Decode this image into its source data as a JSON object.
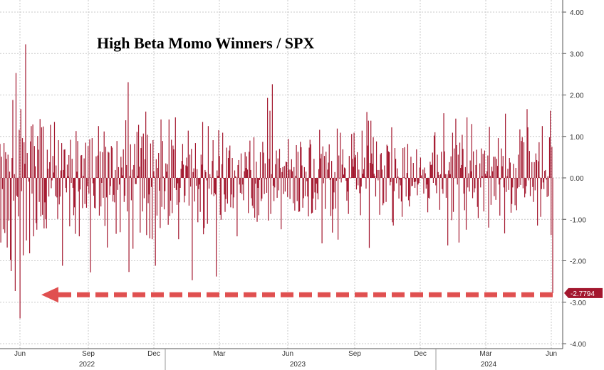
{
  "chart_data": {
    "type": "bar",
    "title": "High Beta Momo Winners / SPX",
    "xlabel": "",
    "ylabel": "",
    "ylim": [
      -4,
      4
    ],
    "y_ticks": [
      "4.00",
      "3.00",
      "2.00",
      "1.00",
      "0.00",
      "-1.00",
      "-2.00",
      "-3.00",
      "-4.00"
    ],
    "y_tick_values": [
      4,
      3,
      2,
      1,
      0,
      -1,
      -2,
      -3,
      -4
    ],
    "x_tick_labels": [
      "Jun",
      "Sep",
      "Dec",
      "Mar",
      "Jun",
      "Sep",
      "Dec",
      "Mar",
      "Jun"
    ],
    "year_labels": [
      "2022",
      "2023",
      "2024"
    ],
    "last_value": -2.7794,
    "last_value_label": "-2.7794",
    "bar_color": "#a3172e",
    "arrow_color": "#e05050",
    "grid": true,
    "axis_side": "right",
    "series": [
      {
        "values": [
          0.82,
          -1.56,
          0.51,
          -0.27,
          -1.24,
          0.84,
          -1.33,
          0.62,
          0.46,
          -1.68,
          0.56,
          -1.03,
          0.15,
          -1.98,
          -2.25,
          0.48,
          1.88,
          -0.55,
          0.09,
          -2.73,
          2.53,
          -0.43,
          -0.46,
          -0.93,
          1.16,
          -3.39,
          1.66,
          -0.32,
          0.96,
          -1.87,
          0.86,
          0.34,
          3.22,
          -1.51,
          0.6,
          0.01,
          -0.09,
          -1.82,
          0.88,
          1.25,
          -0.38,
          1.29,
          -1.41,
          0.77,
          0.28,
          -1.09,
          -1.25,
          1.01,
          0.68,
          -0.58,
          1.42,
          -0.93,
          1.22,
          -0.89,
          1.24,
          -1.22,
          -0.59,
          -1.0,
          -1.22,
          0.68,
          0.22,
          -0.45,
          0.38,
          1.28,
          -0.25,
          -0.06,
          0.53,
          0.13,
          1.35,
          -0.44,
          0.3,
          -0.47,
          -0.99,
          0.91,
          -0.64,
          -0.45,
          0.18,
          0.84,
          -2.12,
          0.19,
          0.68,
          0.69,
          -0.24,
          -0.35,
          0.32,
          0.04,
          0.55,
          -1.17,
          0.92,
          -0.12,
          0.46,
          -0.24,
          -0.9,
          -0.71,
          -1.35,
          1.13,
          0.15,
          0.89,
          -0.33,
          -1.41,
          -0.28,
          0.54,
          0.55,
          -0.73,
          0.05,
          0.47,
          -0.63,
          0.85,
          -0.72,
          -0.2,
          0.77,
          -0.38,
          0.93,
          -2.28,
          0.0,
          0.96,
          -0.13,
          -0.43,
          -0.72,
          -0.74,
          0.52,
          0.01,
          0.54,
          1.25,
          -0.91,
          0.64,
          -0.69,
          -0.12,
          0.62,
          -0.48,
          1.12,
          -1.16,
          0.75,
          -0.47,
          -1.68,
          0.63,
          0.61,
          -0.41,
          -0.2,
          0.77,
          0.73,
          -0.57,
          -0.41,
          -0.59,
          0.19,
          -1.35,
          0.89,
          -0.29,
          0.26,
          -0.16,
          -1.31,
          0.51,
          0.25,
          0.06,
          0.69,
          -0.58,
          -0.43,
          1.39,
          0.31,
          -0.81,
          2.31,
          -2.27,
          0.05,
          0.81,
          -0.54,
          0.2,
          -1.71,
          0.31,
          0.82,
          -0.15,
          -0.15,
          1.11,
          0.05,
          1.28,
          0.27,
          -1.32,
          0.72,
          1.0,
          -0.81,
          1.07,
          -0.49,
          0.45,
          1.6,
          -1.38,
          1.04,
          -0.61,
          -0.4,
          -1.46,
          0.83,
          -0.22,
          -1.48,
          0.91,
          0.16,
          0.03,
          -2.12,
          0.45,
          -0.91,
          0.24,
          0.6,
          -0.31,
          -1.21,
          1.41,
          -0.7,
          0.89,
          0.03,
          -0.76,
          -0.32,
          0.35,
          0.15,
          0.33,
          -1.13,
          1.41,
          -0.92,
          -0.55,
          0.92,
          -0.85,
          0.78,
          0.69,
          -0.24,
          1.46,
          -0.29,
          -0.65,
          -0.13,
          -1.48,
          -0.59,
          -0.24,
          0.22,
          0.41,
          0.82,
          0.32,
          -0.59,
          -0.43,
          0.3,
          0.49,
          0.28,
          1.14,
          -0.67,
          0.56,
          -0.21,
          0.7,
          -2.47,
          0.14,
          0.23,
          -0.57,
          0.84,
          -0.19,
          0.21,
          -1.07,
          -0.27,
          -0.16,
          -0.82,
          0.56,
          0.32,
          1.35,
          -1.36,
          -1.21,
          0.19,
          0.14,
          -0.06,
          -1.11,
          1.25,
          -0.26,
          0.09,
          0.01,
          -0.4,
          0.41,
          0.91,
          -0.44,
          -0.36,
          -0.4,
          -2.38,
          0.18,
          0.05,
          1.15,
          0.53,
          -0.89,
          -1.01,
          0.33,
          1.09,
          -0.02,
          -0.4,
          -0.82,
          -0.51,
          0.73,
          -0.62,
          0.48,
          0.66,
          0.78,
          -0.71,
          -0.4,
          0.48,
          -0.73,
          -0.47,
          0.18,
          0.04,
          0.01,
          -1.41,
          0.31,
          0.43,
          -0.16,
          -0.36,
          0.59,
          -0.39,
          -0.16,
          -0.54,
          0.16,
          0.62,
          0.24,
          0.52,
          0.2,
          -0.85,
          0.63,
          0.9,
          0.19,
          -0.49,
          -0.67,
          -0.73,
          0.98,
          -0.96,
          -0.14,
          0.39,
          -1.06,
          -0.24,
          -0.9,
          -0.05,
          0.62,
          -0.56,
          -0.5,
          0.87,
          0.61,
          -0.39,
          0.35,
          -0.03,
          -0.36,
          1.93,
          -1.03,
          0.46,
          1.62,
          -0.87,
          0.09,
          2.26,
          -0.19,
          -0.56,
          -0.23,
          0.33,
          0.66,
          -0.48,
          0.47,
          -0.3,
          0.7,
          0.24,
          -1.24,
          0.14,
          0.26,
          -0.39,
          0.29,
          -0.33,
          0.39,
          0.38,
          -0.46,
          0.94,
          0.2,
          -0.51,
          0.2,
          0.45,
          0.16,
          -0.61,
          0.26,
          -0.79,
          0.05,
          0.79,
          -0.56,
          0.63,
          -0.82,
          -0.81,
          0.87,
          0.74,
          0.3,
          -0.72,
          -0.49,
          0.26,
          -0.44,
          0.15,
          -0.08,
          -0.45,
          -0.93,
          0.73,
          0.92,
          0.81,
          -0.86,
          -0.84,
          -0.5,
          0.46,
          -0.35,
          -0.77,
          -0.14,
          -0.37,
          -0.52,
          0.21,
          1.16,
          0.47,
          0.58,
          -1.58,
          0.76,
          -0.13,
          0.53,
          -0.75,
          0.63,
          -0.01,
          0.2,
          0.37,
          0.81,
          -0.05,
          -0.92,
          0.41,
          -1.32,
          -0.76,
          -0.35,
          0.14,
          -0.74,
          -0.07,
          1.19,
          -1.49,
          0.54,
          -0.02,
          1.09,
          -0.11,
          0.32,
          0.69,
          0.08,
          0.25,
          0.23,
          -0.07,
          -0.55,
          -0.33,
          -0.87,
          0.53,
          -0.01,
          0.01,
          1.06,
          0.46,
          0.27,
          1.09,
          0.49,
          0.55,
          -0.28,
          0.62,
          -0.18,
          0.2,
          -0.37,
          -0.9,
          -0.21,
          1.14,
          0.1,
          0.21,
          0.49,
          0.02,
          -0.26,
          1.59,
          0.78,
          1.38,
          -1.69,
          0.36,
          1.38,
          0.59,
          0.34,
          0.98,
          0.1,
          0.05,
          -0.45,
          0.88,
          0.19,
          -0.06,
          0.19,
          -0.89,
          0.57,
          0.6,
          0.2,
          -0.66,
          -0.61,
          0.3,
          0.0,
          -0.58,
          0.8,
          0.77,
          0.64,
          0.62,
          -0.18,
          -0.1,
          1.22,
          -1.07,
          -1.15,
          -0.32,
          0.72,
          0.46,
          -0.13,
          0.23,
          0.03,
          -0.5,
          -0.04,
          -0.18,
          -0.57,
          -0.94,
          0.72,
          0.01,
          0.74,
          -0.03,
          -0.45,
          0.12,
          0.82,
          -0.54,
          -0.69,
          -0.44,
          0.51,
          -0.2,
          -0.19,
          0.36,
          -0.1,
          -0.24,
          -0.09,
          0.69,
          -0.42,
          -0.16,
          -0.12,
          0.25,
          0.49,
          0.06,
          -0.02,
          0.2,
          -0.38,
          0.25,
          0.11,
          -0.26,
          -0.16,
          -0.83,
          -0.48,
          -0.5,
          0.39,
          0.31,
          0.32,
          0.61,
          -0.12,
          1.02,
          1.1,
          -0.18,
          -0.37,
          0.56,
          0.14,
          0.07,
          -0.77,
          0.09,
          0.63,
          -0.27,
          -0.38,
          1.56,
          0.64,
          0.09,
          -0.48,
          0.09,
          -1.63,
          0.18,
          0.38,
          0.09,
          0.52,
          -1.02,
          1.09,
          -0.82,
          0.71,
          -0.01,
          1.43,
          0.79,
          -0.16,
          0.56,
          -1.56,
          0.85,
          0.24,
          0.31,
          1.04,
          0.7,
          -0.38,
          -0.78,
          0.26,
          -1.25,
          1.46,
          -0.23,
          0.11,
          -0.33,
          0.42,
          0.16,
          1.3,
          -0.49,
          0.64,
          -0.35,
          -0.25,
          0.31,
          0.68,
          -0.7,
          -0.97,
          -0.01,
          0.35,
          -0.23,
          0.71,
          0.04,
          0.58,
          -0.81,
          0.66,
          0.1,
          0.05,
          0.16,
          0.54,
          -1.2,
          1.23,
          0.05,
          -0.65,
          0.27,
          0.16,
          0.51,
          -0.44,
          0.51,
          -0.53,
          0.46,
          0.29,
          0.96,
          -0.16,
          -0.91,
          -0.04,
          0.71,
          0.28,
          0.53,
          -0.23,
          -1.34,
          1.55,
          -0.34,
          0.04,
          0.22,
          -0.29,
          0.48,
          0.37,
          -0.84,
          -0.63,
          -0.23,
          0.34,
          -0.01,
          -0.66,
          0.24,
          -0.78,
          -0.25,
          0.56,
          -0.22,
          1.17,
          -0.17,
          0.89,
          0.98,
          -0.25,
          0.86,
          -0.47,
          -0.38,
          -0.2,
          1.66,
          1.22,
          -0.06,
          0.65,
          -0.44,
          -0.02,
          0.38,
          -0.22,
          -0.58,
          0.38,
          -0.3,
          0.59,
          0.43,
          -1.15,
          0.4,
          0.86,
          0.01,
          -0.94,
          -0.27,
          1.25,
          -0.11,
          -0.27,
          0.17,
          0.19,
          -0.04,
          -0.46,
          0.04,
          -0.44,
          0.98,
          1.62,
          -1.38,
          0.75,
          -2.78
        ],
        "values_start_date": "2022-06-01"
      }
    ]
  }
}
